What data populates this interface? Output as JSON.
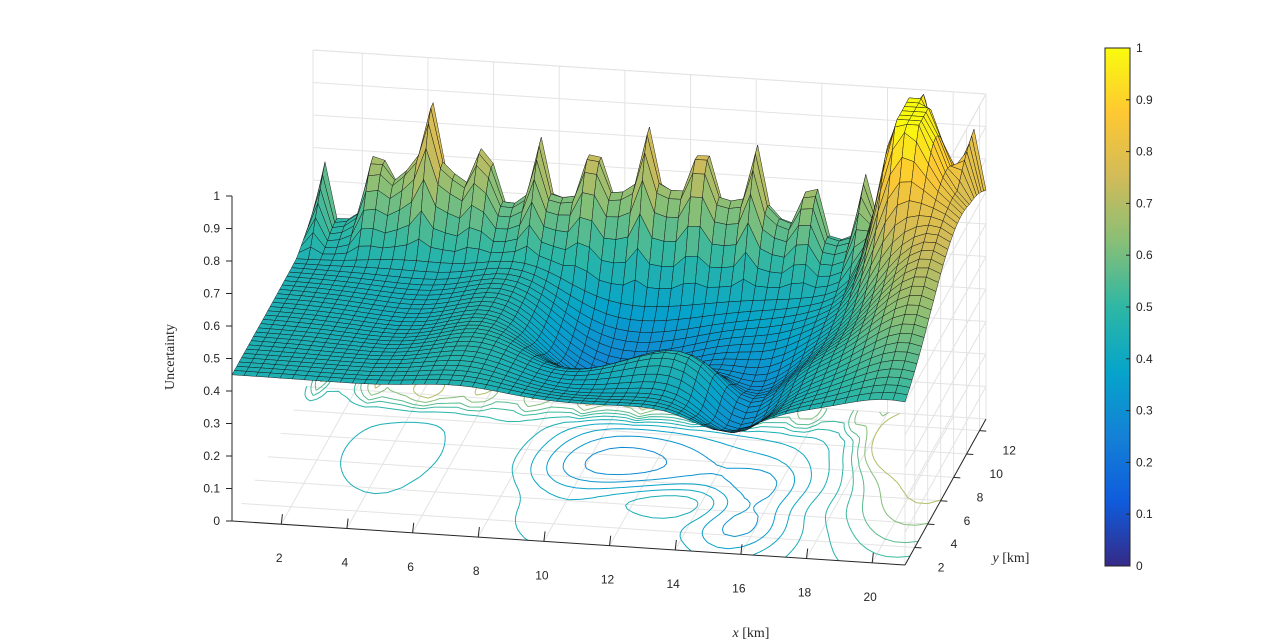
{
  "chart_data": {
    "type": "surface3d",
    "title": "",
    "xlabel_var": "x",
    "xlabel_unit": "[km]",
    "ylabel_var": "y",
    "ylabel_unit": "[km]",
    "zlabel": "Uncertainty",
    "xlim": [
      0.5,
      21
    ],
    "ylim": [
      0.5,
      13
    ],
    "zlim": [
      0,
      1
    ],
    "xticks": [
      "2",
      "4",
      "6",
      "8",
      "10",
      "12",
      "14",
      "16",
      "18",
      "20"
    ],
    "yticks": [
      "2",
      "4",
      "6",
      "8",
      "10",
      "12"
    ],
    "zticks": [
      "0",
      "0.1",
      "0.2",
      "0.3",
      "0.4",
      "0.5",
      "0.6",
      "0.7",
      "0.8",
      "0.9",
      "1"
    ],
    "colorbar": {
      "colormap": "parula",
      "range": [
        0,
        1
      ],
      "ticks": [
        "0",
        "0.1",
        "0.2",
        "0.3",
        "0.4",
        "0.5",
        "0.6",
        "0.7",
        "0.8",
        "0.9",
        "1"
      ]
    },
    "grid": true,
    "has_contour_projection": true,
    "features": {
      "baseline": 0.45,
      "valley_minimum": 0.25,
      "valley_location": {
        "x": 10.5,
        "y": 7
      },
      "secondary_valley_location": {
        "x": 15.5,
        "y": 4
      },
      "peak_max": 1.0,
      "peak_location": {
        "x": 19,
        "y": 11
      },
      "right_ridge_level": 0.8,
      "spiky_back_edge": true
    }
  },
  "colors": {
    "parula": [
      "#352a87",
      "#0f5cdd",
      "#1481d6",
      "#06a4ca",
      "#2eb7a4",
      "#87bf77",
      "#d1bb59",
      "#fec832",
      "#f9fb0e"
    ]
  }
}
